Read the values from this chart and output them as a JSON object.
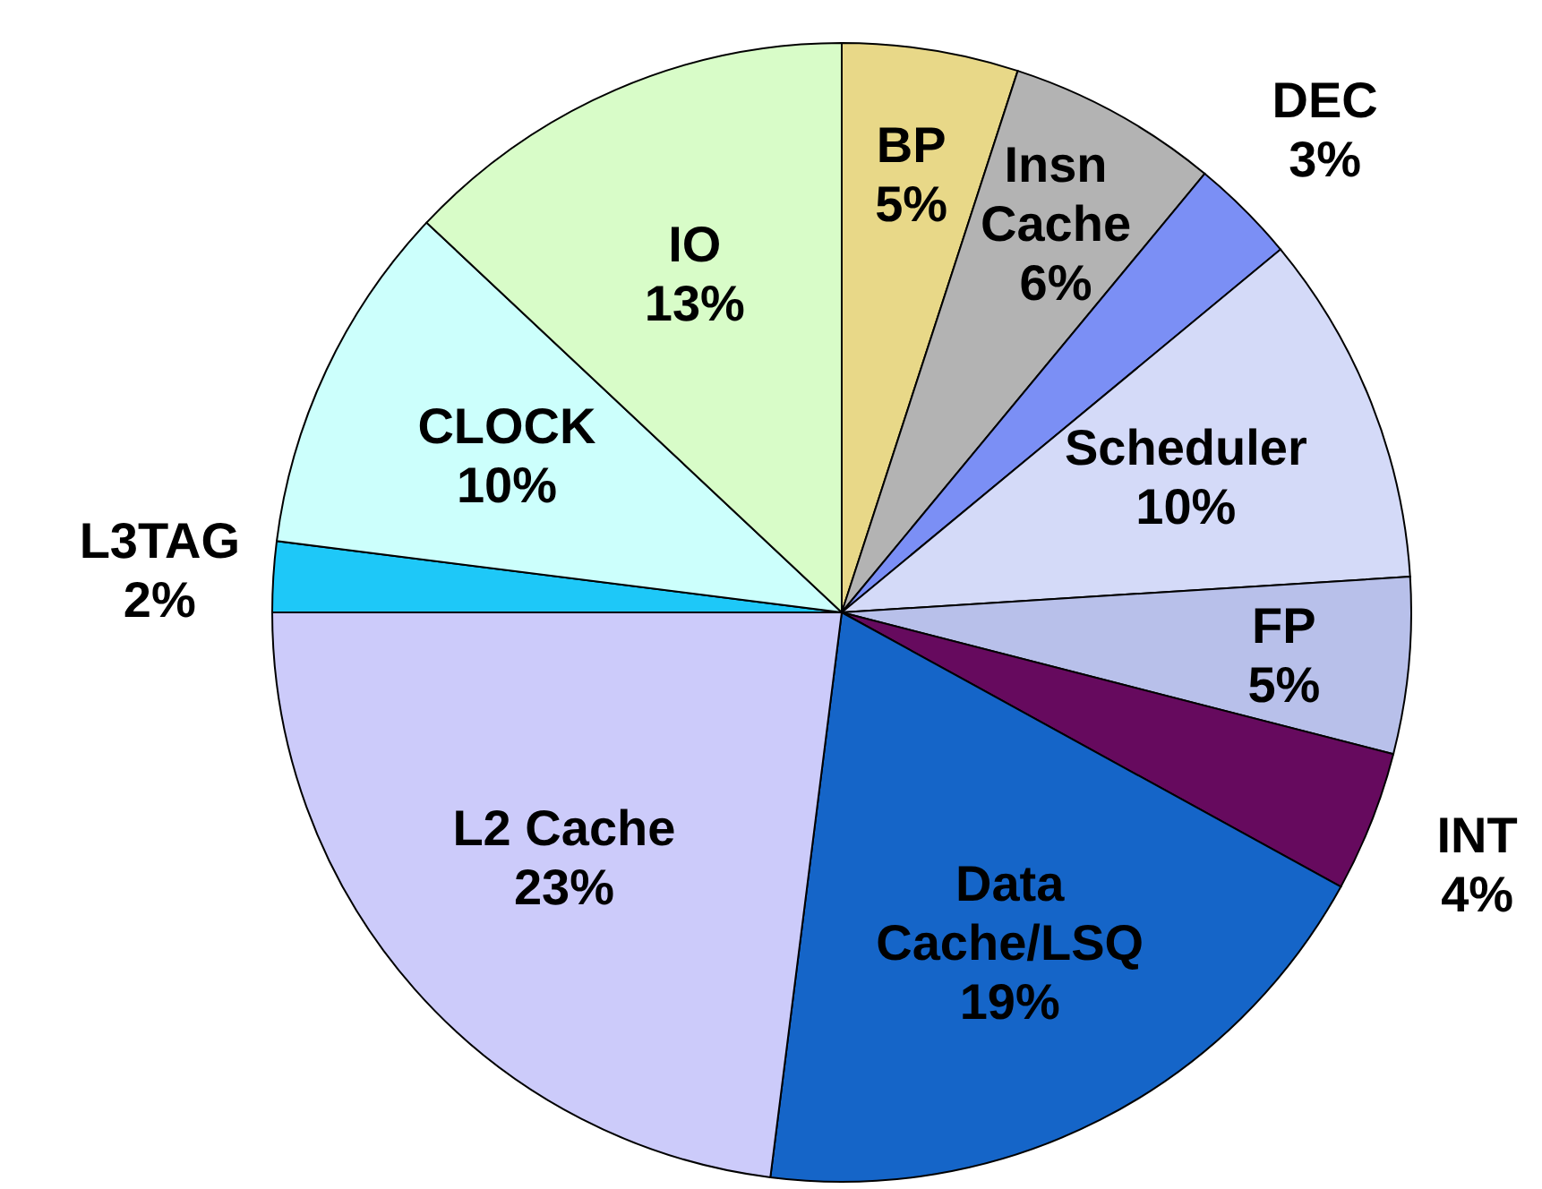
{
  "chart_data": {
    "type": "pie",
    "categories": [
      "BP",
      "Insn Cache",
      "DEC",
      "Scheduler",
      "FP",
      "INT",
      "Data Cache/LSQ",
      "L2 Cache",
      "L3TAG",
      "CLOCK",
      "IO"
    ],
    "values": [
      5,
      6,
      3,
      10,
      5,
      4,
      19,
      23,
      2,
      10,
      13
    ],
    "colors": [
      "#e8d888",
      "#b3b3b3",
      "#7b8ff5",
      "#d4daf8",
      "#b8c0ea",
      "#660a5e",
      "#1565c8",
      "#cccbfa",
      "#1ec8f8",
      "#ccfffc",
      "#d8fcc8"
    ],
    "value_labels": [
      "5%",
      "6%",
      "3%",
      "10%",
      "5%",
      "4%",
      "19%",
      "23%",
      "2%",
      "10%",
      "13%"
    ]
  }
}
